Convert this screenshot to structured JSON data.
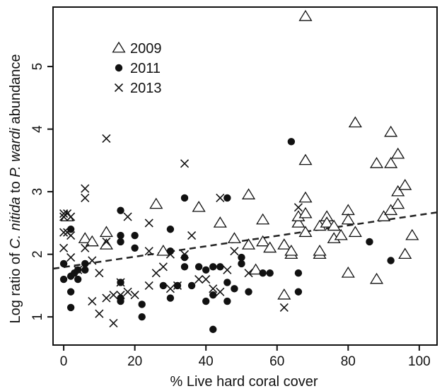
{
  "chart_data": {
    "type": "scatter",
    "xlabel": "% Live hard coral cover",
    "ylabel_parts": [
      {
        "text": "Log ratio of ",
        "italic": false
      },
      {
        "text": "C. nitida",
        "italic": true
      },
      {
        "text": " to ",
        "italic": false
      },
      {
        "text": "P. wardi",
        "italic": true
      },
      {
        "text": " abundance",
        "italic": false
      }
    ],
    "xlim": [
      -3,
      105
    ],
    "ylim": [
      0.55,
      5.95
    ],
    "xticks": [
      0,
      20,
      40,
      60,
      80,
      100
    ],
    "yticks": [
      1,
      2,
      3,
      4,
      5
    ],
    "legend_position": "top-left",
    "trendline": {
      "x": [
        -3,
        105
      ],
      "y": [
        1.77,
        2.67
      ],
      "style": "dashed"
    },
    "series": [
      {
        "name": "2009",
        "marker": "triangle-open",
        "points": [
          [
            1,
            2.6
          ],
          [
            6,
            2.25
          ],
          [
            8,
            2.2
          ],
          [
            12,
            2.35
          ],
          [
            12,
            2.15
          ],
          [
            26,
            2.8
          ],
          [
            28,
            2.05
          ],
          [
            38,
            2.75
          ],
          [
            44,
            2.5
          ],
          [
            48,
            2.25
          ],
          [
            52,
            2.95
          ],
          [
            52,
            2.15
          ],
          [
            54,
            1.75
          ],
          [
            56,
            2.55
          ],
          [
            56,
            2.2
          ],
          [
            58,
            2.1
          ],
          [
            62,
            2.15
          ],
          [
            62,
            1.35
          ],
          [
            64,
            2.0
          ],
          [
            64,
            2.05
          ],
          [
            66,
            2.5
          ],
          [
            66,
            2.6
          ],
          [
            68,
            5.8
          ],
          [
            68,
            3.5
          ],
          [
            68,
            2.9
          ],
          [
            68,
            2.65
          ],
          [
            68,
            2.35
          ],
          [
            72,
            2.0
          ],
          [
            72,
            2.05
          ],
          [
            72,
            2.45
          ],
          [
            74,
            2.6
          ],
          [
            74,
            2.5
          ],
          [
            76,
            2.45
          ],
          [
            76,
            2.25
          ],
          [
            78,
            2.3
          ],
          [
            80,
            2.7
          ],
          [
            80,
            2.55
          ],
          [
            80,
            1.7
          ],
          [
            82,
            4.1
          ],
          [
            82,
            2.35
          ],
          [
            88,
            3.45
          ],
          [
            88,
            1.6
          ],
          [
            90,
            2.6
          ],
          [
            92,
            3.95
          ],
          [
            92,
            3.45
          ],
          [
            92,
            2.7
          ],
          [
            94,
            3.6
          ],
          [
            94,
            3.0
          ],
          [
            94,
            2.8
          ],
          [
            96,
            3.1
          ],
          [
            96,
            2.0
          ],
          [
            98,
            2.3
          ]
        ]
      },
      {
        "name": "2011",
        "marker": "filled-circle",
        "points": [
          [
            0,
            1.85
          ],
          [
            0,
            1.6
          ],
          [
            2,
            2.4
          ],
          [
            2,
            1.4
          ],
          [
            2,
            1.15
          ],
          [
            2,
            1.65
          ],
          [
            3,
            1.7
          ],
          [
            4,
            1.6
          ],
          [
            4,
            1.75
          ],
          [
            6,
            1.75
          ],
          [
            6,
            1.85
          ],
          [
            16,
            2.7
          ],
          [
            16,
            2.3
          ],
          [
            16,
            2.2
          ],
          [
            16,
            1.55
          ],
          [
            16,
            1.3
          ],
          [
            16,
            1.25
          ],
          [
            20,
            2.3
          ],
          [
            20,
            2.1
          ],
          [
            22,
            1.2
          ],
          [
            22,
            1.0
          ],
          [
            28,
            1.5
          ],
          [
            30,
            2.4
          ],
          [
            30,
            2.05
          ],
          [
            30,
            1.3
          ],
          [
            32,
            1.5
          ],
          [
            34,
            2.9
          ],
          [
            34,
            1.95
          ],
          [
            34,
            1.8
          ],
          [
            36,
            1.5
          ],
          [
            38,
            1.8
          ],
          [
            40,
            1.75
          ],
          [
            40,
            1.25
          ],
          [
            42,
            1.35
          ],
          [
            42,
            1.8
          ],
          [
            42,
            0.8
          ],
          [
            44,
            1.8
          ],
          [
            46,
            2.9
          ],
          [
            46,
            1.55
          ],
          [
            46,
            1.25
          ],
          [
            48,
            1.45
          ],
          [
            50,
            1.85
          ],
          [
            50,
            1.95
          ],
          [
            52,
            1.4
          ],
          [
            56,
            1.7
          ],
          [
            58,
            1.7
          ],
          [
            64,
            3.8
          ],
          [
            66,
            1.7
          ],
          [
            66,
            1.4
          ],
          [
            86,
            2.2
          ],
          [
            92,
            1.9
          ]
        ]
      },
      {
        "name": "2013",
        "marker": "cross",
        "points": [
          [
            0,
            2.65
          ],
          [
            0,
            2.6
          ],
          [
            0,
            2.35
          ],
          [
            0,
            2.1
          ],
          [
            1,
            2.65
          ],
          [
            1,
            2.35
          ],
          [
            2,
            2.6
          ],
          [
            2,
            2.3
          ],
          [
            2,
            1.95
          ],
          [
            4,
            1.75
          ],
          [
            6,
            3.05
          ],
          [
            6,
            2.9
          ],
          [
            6,
            2.1
          ],
          [
            8,
            1.9
          ],
          [
            8,
            1.25
          ],
          [
            10,
            1.7
          ],
          [
            10,
            1.05
          ],
          [
            12,
            3.85
          ],
          [
            12,
            1.3
          ],
          [
            12,
            2.2
          ],
          [
            14,
            1.35
          ],
          [
            14,
            0.9
          ],
          [
            16,
            1.55
          ],
          [
            16,
            1.35
          ],
          [
            18,
            2.6
          ],
          [
            18,
            1.4
          ],
          [
            20,
            1.35
          ],
          [
            24,
            2.5
          ],
          [
            24,
            2.05
          ],
          [
            24,
            1.5
          ],
          [
            26,
            1.7
          ],
          [
            28,
            1.8
          ],
          [
            30,
            2.0
          ],
          [
            30,
            1.45
          ],
          [
            32,
            1.5
          ],
          [
            34,
            3.45
          ],
          [
            34,
            2.0
          ],
          [
            36,
            2.3
          ],
          [
            38,
            1.6
          ],
          [
            40,
            1.6
          ],
          [
            42,
            1.45
          ],
          [
            44,
            2.9
          ],
          [
            44,
            1.4
          ],
          [
            46,
            1.75
          ],
          [
            48,
            2.05
          ],
          [
            52,
            1.7
          ],
          [
            62,
            1.15
          ],
          [
            66,
            2.75
          ]
        ]
      }
    ]
  }
}
